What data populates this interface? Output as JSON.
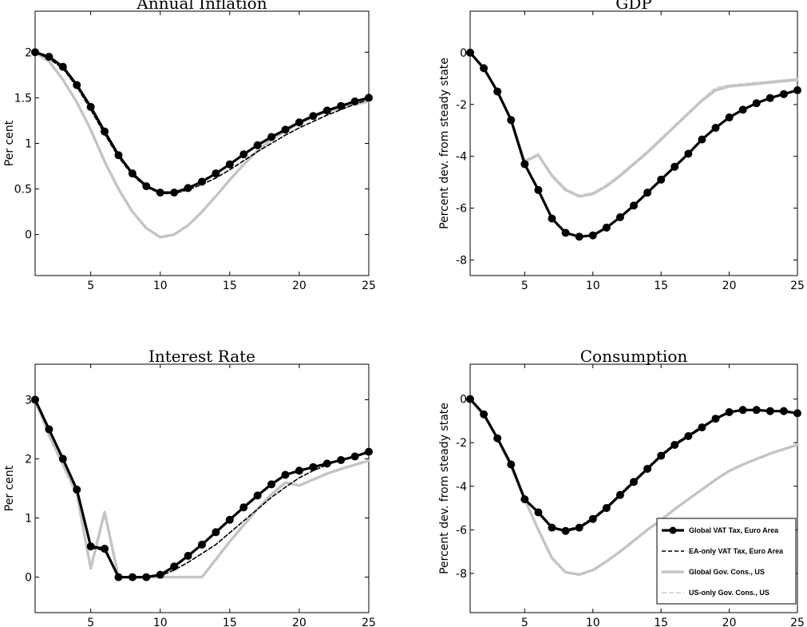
{
  "chart_data": [
    {
      "type": "line",
      "title": "Annual Inflation",
      "xlabel": "",
      "ylabel": "Per cent",
      "xlim": [
        1,
        25
      ],
      "ylim": [
        -0.45,
        2.45
      ],
      "xticks": [
        5,
        10,
        15,
        20,
        25
      ],
      "yticks": [
        0,
        0.5,
        1,
        1.5,
        2
      ],
      "ytick_labels": [
        "0",
        "0.5",
        "1",
        "1.5",
        "2"
      ],
      "x": [
        1,
        2,
        3,
        4,
        5,
        6,
        7,
        8,
        9,
        10,
        11,
        12,
        13,
        14,
        15,
        16,
        17,
        18,
        19,
        20,
        21,
        22,
        23,
        24,
        25
      ],
      "series": [
        {
          "values": [
            2.0,
            1.95,
            1.84,
            1.64,
            1.4,
            1.13,
            0.87,
            0.67,
            0.53,
            0.46,
            0.46,
            0.51,
            0.58,
            0.67,
            0.77,
            0.88,
            0.98,
            1.07,
            1.15,
            1.23,
            1.3,
            1.36,
            1.41,
            1.46,
            1.5
          ]
        },
        {
          "values": [
            2.0,
            1.93,
            1.82,
            1.62,
            1.37,
            1.1,
            0.85,
            0.65,
            0.52,
            0.45,
            0.45,
            0.49,
            0.55,
            0.62,
            0.71,
            0.81,
            0.91,
            1.0,
            1.09,
            1.17,
            1.24,
            1.31,
            1.37,
            1.43,
            1.48
          ]
        },
        {
          "values": [
            2.0,
            1.9,
            1.7,
            1.45,
            1.15,
            0.8,
            0.5,
            0.25,
            0.07,
            -0.03,
            0.0,
            0.1,
            0.25,
            0.42,
            0.6,
            0.77,
            0.92,
            1.04,
            1.14,
            1.22,
            1.29,
            1.35,
            1.39,
            1.43,
            1.46
          ]
        },
        {
          "values": [
            2.0,
            1.9,
            1.7,
            1.45,
            1.15,
            0.8,
            0.5,
            0.25,
            0.07,
            -0.03,
            0.0,
            0.1,
            0.25,
            0.42,
            0.6,
            0.77,
            0.92,
            1.04,
            1.14,
            1.22,
            1.29,
            1.35,
            1.39,
            1.43,
            1.46
          ]
        }
      ]
    },
    {
      "type": "line",
      "title": "GDP",
      "xlabel": "",
      "ylabel": "Percent dev. from steady state",
      "xlim": [
        1,
        25
      ],
      "ylim": [
        -8.6,
        1.6
      ],
      "xticks": [
        5,
        10,
        15,
        20,
        25
      ],
      "yticks": [
        0,
        -2,
        -4,
        -6,
        -8
      ],
      "ytick_labels": [
        "0",
        "-2",
        "-4",
        "-6",
        "-8"
      ],
      "x": [
        1,
        2,
        3,
        4,
        5,
        6,
        7,
        8,
        9,
        10,
        11,
        12,
        13,
        14,
        15,
        16,
        17,
        18,
        19,
        20,
        21,
        22,
        23,
        24,
        25
      ],
      "series": [
        {
          "values": [
            0.0,
            -0.6,
            -1.5,
            -2.6,
            -4.3,
            -5.3,
            -6.4,
            -6.95,
            -7.1,
            -7.05,
            -6.75,
            -6.35,
            -5.9,
            -5.4,
            -4.9,
            -4.4,
            -3.9,
            -3.35,
            -2.9,
            -2.5,
            -2.2,
            -1.95,
            -1.75,
            -1.6,
            -1.45
          ]
        },
        {
          "values": [
            0.0,
            -0.6,
            -1.5,
            -2.6,
            -4.3,
            -5.3,
            -6.4,
            -6.95,
            -7.1,
            -7.05,
            -6.75,
            -6.35,
            -5.9,
            -5.4,
            -4.9,
            -4.4,
            -3.9,
            -3.35,
            -2.9,
            -2.5,
            -2.2,
            -1.95,
            -1.75,
            -1.6,
            -1.45
          ]
        },
        {
          "values": [
            0.0,
            -0.6,
            -1.5,
            -2.6,
            -4.2,
            -3.95,
            -4.75,
            -5.3,
            -5.55,
            -5.45,
            -5.15,
            -4.75,
            -4.3,
            -3.85,
            -3.35,
            -2.85,
            -2.35,
            -1.85,
            -1.45,
            -1.3,
            -1.25,
            -1.2,
            -1.15,
            -1.1,
            -1.05
          ]
        },
        {
          "values": [
            0.0,
            -0.6,
            -1.5,
            -2.6,
            -4.15,
            -3.9,
            -4.7,
            -5.25,
            -5.5,
            -5.4,
            -5.1,
            -4.7,
            -4.25,
            -3.8,
            -3.3,
            -2.8,
            -2.3,
            -1.8,
            -1.35,
            -1.25,
            -1.2,
            -1.15,
            -1.1,
            -1.05,
            -1.0
          ]
        }
      ]
    },
    {
      "type": "line",
      "title": "Interest Rate",
      "xlabel": "",
      "ylabel": "Per cent",
      "xlim": [
        1,
        25
      ],
      "ylim": [
        -0.6,
        3.6
      ],
      "xticks": [
        5,
        10,
        15,
        20,
        25
      ],
      "yticks": [
        0,
        1,
        2,
        3
      ],
      "ytick_labels": [
        "0",
        "1",
        "2",
        "3"
      ],
      "x": [
        1,
        2,
        3,
        4,
        5,
        6,
        7,
        8,
        9,
        10,
        11,
        12,
        13,
        14,
        15,
        16,
        17,
        18,
        19,
        20,
        21,
        22,
        23,
        24,
        25
      ],
      "series": [
        {
          "values": [
            3.0,
            2.5,
            2.0,
            1.48,
            0.52,
            0.48,
            0.0,
            0.0,
            0.0,
            0.04,
            0.18,
            0.36,
            0.55,
            0.76,
            0.97,
            1.18,
            1.38,
            1.57,
            1.73,
            1.8,
            1.86,
            1.92,
            1.98,
            2.04,
            2.12
          ]
        },
        {
          "values": [
            3.0,
            2.5,
            2.0,
            1.45,
            0.5,
            0.45,
            0.0,
            0.0,
            0.0,
            0.02,
            0.12,
            0.25,
            0.4,
            0.55,
            0.75,
            0.95,
            1.15,
            1.35,
            1.52,
            1.68,
            1.8,
            1.9,
            1.98,
            2.04,
            2.1
          ]
        },
        {
          "values": [
            3.0,
            2.4,
            1.9,
            1.4,
            0.15,
            1.1,
            0.0,
            0.0,
            0.0,
            0.0,
            0.0,
            0.0,
            0.0,
            0.3,
            0.6,
            0.88,
            1.15,
            1.4,
            1.6,
            1.55,
            1.65,
            1.75,
            1.83,
            1.9,
            1.97
          ]
        },
        {
          "values": [
            3.0,
            2.4,
            1.9,
            1.4,
            0.15,
            1.1,
            0.0,
            0.0,
            0.0,
            0.0,
            0.0,
            0.0,
            0.0,
            0.3,
            0.6,
            0.88,
            1.15,
            1.4,
            1.6,
            1.55,
            1.65,
            1.75,
            1.83,
            1.9,
            1.97
          ]
        }
      ]
    },
    {
      "type": "line",
      "title": "Consumption",
      "xlabel": "",
      "ylabel": "Percent dev. from steady state",
      "xlim": [
        1,
        25
      ],
      "ylim": [
        -9.8,
        1.6
      ],
      "xticks": [
        5,
        10,
        15,
        20,
        25
      ],
      "yticks": [
        0,
        -2,
        -4,
        -6,
        -8
      ],
      "ytick_labels": [
        "0",
        "-2",
        "-4",
        "-6",
        "-8"
      ],
      "x": [
        1,
        2,
        3,
        4,
        5,
        6,
        7,
        8,
        9,
        10,
        11,
        12,
        13,
        14,
        15,
        16,
        17,
        18,
        19,
        20,
        21,
        22,
        23,
        24,
        25
      ],
      "series": [
        {
          "values": [
            0.0,
            -0.7,
            -1.8,
            -3.0,
            -4.6,
            -5.2,
            -5.9,
            -6.05,
            -5.9,
            -5.5,
            -5.0,
            -4.4,
            -3.8,
            -3.2,
            -2.6,
            -2.1,
            -1.7,
            -1.3,
            -0.9,
            -0.6,
            -0.5,
            -0.5,
            -0.55,
            -0.55,
            -0.65
          ]
        },
        {
          "values": [
            0.0,
            -0.7,
            -1.8,
            -3.0,
            -4.6,
            -5.2,
            -5.9,
            -6.0,
            -5.85,
            -5.45,
            -4.95,
            -4.35,
            -3.75,
            -3.15,
            -2.55,
            -2.05,
            -1.65,
            -1.25,
            -0.9,
            -0.6,
            -0.5,
            -0.5,
            -0.55,
            -0.6,
            -0.65
          ]
        },
        {
          "values": [
            0.0,
            -0.7,
            -1.8,
            -3.1,
            -4.6,
            -6.0,
            -7.3,
            -7.95,
            -8.05,
            -7.85,
            -7.45,
            -7.0,
            -6.5,
            -6.0,
            -5.55,
            -5.05,
            -4.6,
            -4.15,
            -3.7,
            -3.3,
            -3.0,
            -2.75,
            -2.5,
            -2.3,
            -2.1
          ]
        },
        {
          "values": [
            0.0,
            -0.7,
            -1.8,
            -3.1,
            -4.6,
            -6.0,
            -7.3,
            -7.95,
            -8.05,
            -7.85,
            -7.45,
            -7.0,
            -6.5,
            -6.0,
            -5.55,
            -5.05,
            -4.6,
            -4.15,
            -3.7,
            -3.3,
            -3.0,
            -2.75,
            -2.5,
            -2.3,
            -2.1
          ]
        }
      ],
      "legend": {
        "placement": "bottom-right",
        "entries": [
          "Global VAT Tax, Euro Area",
          "EA-only VAT Tax, Euro Area",
          "Global Gov. Cons., US",
          "US-only Gov. Cons., US"
        ]
      }
    }
  ],
  "colors": {
    "global_vat": "#000000",
    "ea_only_vat": "#000000",
    "global_gov": "#c4c4c4",
    "us_only_gov": "#d2d2d2"
  }
}
